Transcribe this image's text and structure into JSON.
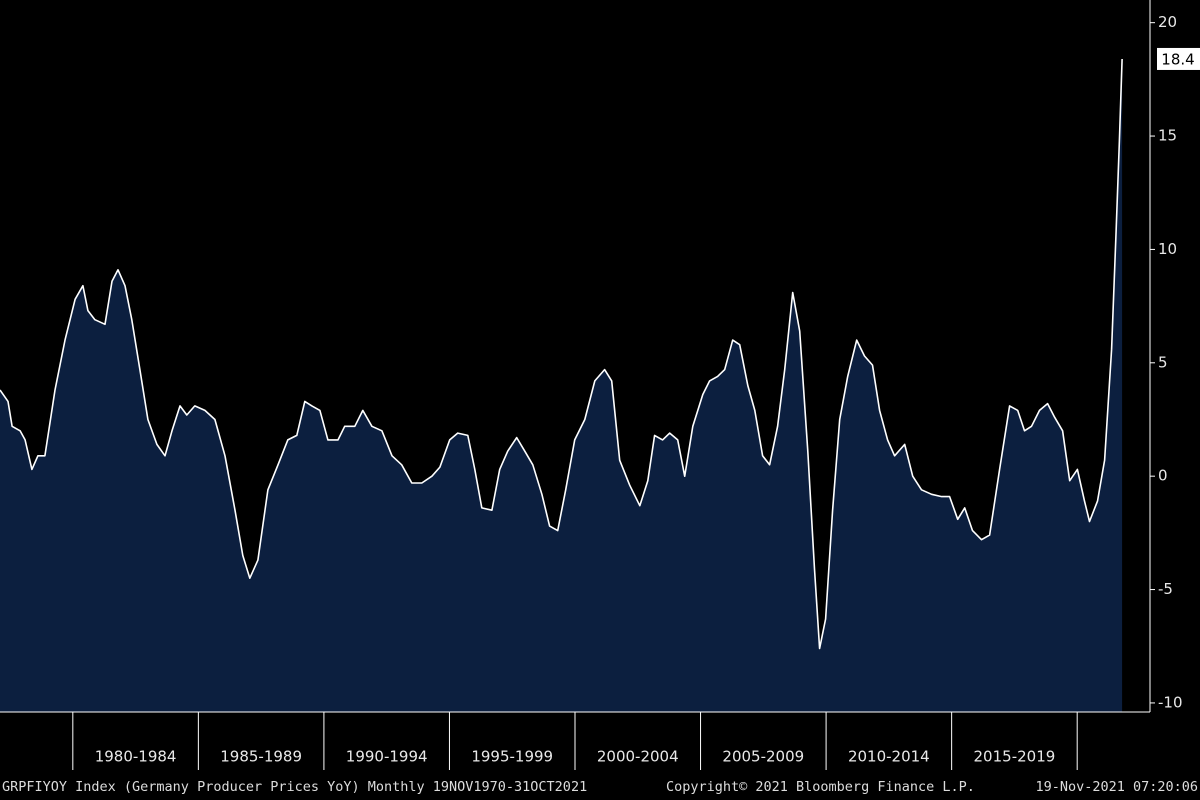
{
  "chart_data": {
    "type": "area",
    "x": [
      1977.1,
      1977.42,
      1977.58,
      1977.9,
      1978.1,
      1978.37,
      1978.61,
      1978.89,
      1979.29,
      1979.69,
      1980.09,
      1980.4,
      1980.6,
      1980.88,
      1981.28,
      1981.56,
      1981.8,
      1982.08,
      1982.35,
      1982.67,
      1982.99,
      1983.35,
      1983.67,
      1983.95,
      1984.27,
      1984.54,
      1984.86,
      1985.26,
      1985.66,
      1986.06,
      1986.46,
      1986.77,
      1987.05,
      1987.37,
      1987.77,
      1988.17,
      1988.56,
      1988.92,
      1989.24,
      1989.52,
      1989.84,
      1990.16,
      1990.56,
      1990.83,
      1991.23,
      1991.55,
      1991.91,
      1992.31,
      1992.71,
      1993.1,
      1993.5,
      1993.9,
      1994.3,
      1994.62,
      1995.01,
      1995.33,
      1995.73,
      1996.01,
      1996.29,
      1996.69,
      1997.0,
      1997.32,
      1997.68,
      1998.0,
      1998.32,
      1998.68,
      1998.99,
      1999.31,
      1999.63,
      1999.99,
      2000.39,
      2000.79,
      2001.18,
      2001.46,
      2001.78,
      2002.18,
      2002.58,
      2002.9,
      2003.17,
      2003.49,
      2003.77,
      2004.09,
      2004.37,
      2004.69,
      2005.09,
      2005.36,
      2005.68,
      2005.96,
      2006.28,
      2006.56,
      2006.88,
      2007.16,
      2007.47,
      2007.75,
      2008.07,
      2008.35,
      2008.67,
      2008.95,
      2009.27,
      2009.54,
      2009.74,
      2009.98,
      2010.26,
      2010.54,
      2010.86,
      2011.22,
      2011.53,
      2011.85,
      2012.13,
      2012.45,
      2012.73,
      2013.13,
      2013.45,
      2013.8,
      2014.2,
      2014.6,
      2014.92,
      2015.24,
      2015.52,
      2015.83,
      2016.19,
      2016.51,
      2016.91,
      2017.31,
      2017.63,
      2017.9,
      2018.18,
      2018.5,
      2018.82,
      2019.1,
      2019.42,
      2019.7,
      2020.01,
      2020.29,
      2020.49,
      2020.81,
      2021.09,
      2021.37,
      2021.55,
      2021.68,
      2021.79
    ],
    "series": [
      {
        "color": "#ffffff",
        "fill": "#0c1f3f",
        "values": [
          3.8,
          3.3,
          2.2,
          2.0,
          1.6,
          0.3,
          0.9,
          0.9,
          3.8,
          6.0,
          7.8,
          8.4,
          7.3,
          6.9,
          6.7,
          8.6,
          9.1,
          8.4,
          6.9,
          4.7,
          2.5,
          1.4,
          0.9,
          2.0,
          3.1,
          2.7,
          3.1,
          2.9,
          2.5,
          0.9,
          -1.5,
          -3.5,
          -4.5,
          -3.7,
          -0.6,
          0.5,
          1.6,
          1.8,
          3.3,
          3.1,
          2.9,
          1.6,
          1.6,
          2.2,
          2.2,
          2.9,
          2.2,
          2.0,
          0.9,
          0.5,
          -0.3,
          -0.3,
          0.0,
          0.4,
          1.6,
          1.9,
          1.8,
          0.3,
          -1.4,
          -1.5,
          0.3,
          1.1,
          1.7,
          1.1,
          0.5,
          -0.8,
          -2.2,
          -2.4,
          -0.6,
          1.6,
          2.5,
          4.2,
          4.7,
          4.2,
          0.7,
          -0.4,
          -1.3,
          -0.2,
          1.8,
          1.6,
          1.9,
          1.6,
          0.0,
          2.2,
          3.6,
          4.2,
          4.4,
          4.7,
          6.0,
          5.8,
          4.0,
          2.9,
          0.9,
          0.5,
          2.2,
          4.7,
          8.1,
          6.4,
          1.1,
          -4.1,
          -7.6,
          -6.3,
          -1.5,
          2.5,
          4.4,
          6.0,
          5.3,
          4.9,
          2.9,
          1.6,
          0.9,
          1.4,
          0.0,
          -0.6,
          -0.8,
          -0.9,
          -0.9,
          -1.9,
          -1.4,
          -2.4,
          -2.8,
          -2.6,
          0.3,
          3.1,
          2.9,
          2.0,
          2.2,
          2.9,
          3.2,
          2.6,
          2.0,
          -0.2,
          0.3,
          -1.1,
          -2.0,
          -1.1,
          0.7,
          5.6,
          10.8,
          14.8,
          18.4
        ]
      }
    ],
    "xlim": [
      1977.1,
      2022.9
    ],
    "xticks": [
      {
        "value": 1980,
        "label": "1980-1984"
      },
      {
        "value": 1985,
        "label": "1985-1989"
      },
      {
        "value": 1990,
        "label": "1990-1994"
      },
      {
        "value": 1995,
        "label": "1995-1999"
      },
      {
        "value": 2000,
        "label": "2000-2004"
      },
      {
        "value": 2005,
        "label": "2005-2009"
      },
      {
        "value": 2010,
        "label": "2010-2014"
      },
      {
        "value": 2015,
        "label": "2015-2019"
      },
      {
        "value": 2020,
        "label": null
      }
    ],
    "ylim": [
      -10.4,
      21
    ],
    "yticks": [
      -10,
      -5,
      0,
      5,
      10,
      15,
      20
    ],
    "footer_left": "GRPFIYOY Index (Germany Producer Prices YoY)  Monthly 19NOV1970-31OCT2021",
    "footer_center": "Copyright© 2021 Bloomberg Finance L.P.",
    "footer_right": "19-Nov-2021 07:20:06"
  }
}
